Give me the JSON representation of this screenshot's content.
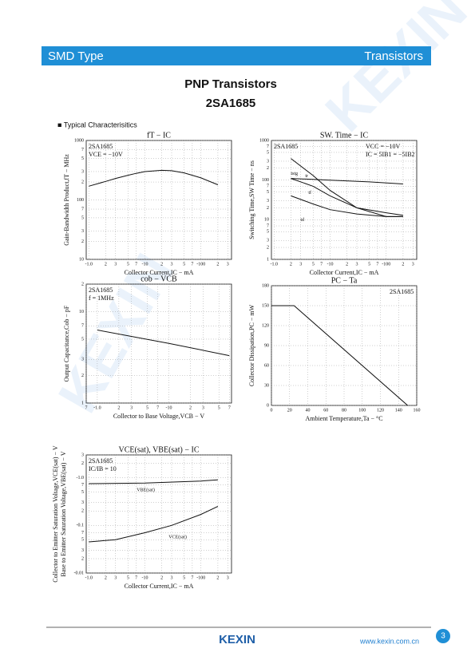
{
  "header": {
    "left": "SMD Type",
    "right": "Transistors"
  },
  "title": "PNP  Transistors",
  "part": "2SA1685",
  "section": "■ Typical  Characterisitics",
  "watermark": "KEXIN",
  "footer": {
    "logo": "KEXIN",
    "url": "www.kexin.com.cn",
    "page": "3"
  },
  "chart_data": [
    {
      "type": "line",
      "title": "fT  −  IC",
      "annotations": [
        "2SA1685",
        "VCE = −10V"
      ],
      "xlabel": "Collector Current,IC − mA",
      "ylabel": "Gain-Bandwidth Product,fT − MHz",
      "xscale": "log",
      "yscale": "log",
      "xlim": [
        -0.9,
        -350
      ],
      "ylim": [
        10,
        1000
      ],
      "grid": true,
      "xticks": [
        {
          "value": -1,
          "label": "-1.0"
        },
        {
          "value": -2,
          "label": "2"
        },
        {
          "value": -3,
          "label": "3"
        },
        {
          "value": -5,
          "label": "5"
        },
        {
          "value": -7,
          "label": "7"
        },
        -10,
        {
          "value": -20,
          "label": "2"
        },
        {
          "value": -30,
          "label": "3"
        },
        {
          "value": -50,
          "label": "5"
        },
        {
          "value": -70,
          "label": "7"
        },
        -100,
        {
          "value": -200,
          "label": "2"
        },
        {
          "value": -300,
          "label": "3"
        }
      ],
      "yticks": [
        10,
        {
          "value": 20,
          "label": "2"
        },
        {
          "value": 30,
          "label": "3"
        },
        {
          "value": 50,
          "label": "5"
        },
        {
          "value": 70,
          "label": "7"
        },
        100,
        {
          "value": 200,
          "label": "2"
        },
        {
          "value": 300,
          "label": "3"
        },
        {
          "value": 500,
          "label": "5"
        },
        {
          "value": 700,
          "label": "7"
        },
        1000
      ],
      "series": [
        {
          "color": "#111",
          "x": [
            -1,
            -2,
            -3,
            -5,
            -7,
            -10,
            -20,
            -30,
            -50,
            -70,
            -100,
            -200
          ],
          "values": [
            170,
            205,
            230,
            260,
            280,
            300,
            315,
            310,
            285,
            260,
            235,
            180
          ]
        }
      ]
    },
    {
      "type": "line",
      "title": "SW. Time  −  IC",
      "annotations": [
        "2SA1685",
        "VCC = −10V",
        "IC = 5IB1 = −5IB2"
      ],
      "xlabel": "Collector Current,IC − mA",
      "ylabel": "Switching Time,SW Time − ns",
      "xscale": "log",
      "yscale": "log",
      "xlim": [
        -0.9,
        -350
      ],
      "ylim": [
        1,
        1000
      ],
      "grid": true,
      "xticks": [
        {
          "value": -1,
          "label": "-1.0"
        },
        {
          "value": -2,
          "label": "2"
        },
        {
          "value": -3,
          "label": "3"
        },
        {
          "value": -5,
          "label": "5"
        },
        {
          "value": -7,
          "label": "7"
        },
        -10,
        {
          "value": -20,
          "label": "2"
        },
        {
          "value": -30,
          "label": "3"
        },
        {
          "value": -50,
          "label": "5"
        },
        {
          "value": -70,
          "label": "7"
        },
        -100,
        {
          "value": -200,
          "label": "2"
        },
        {
          "value": -300,
          "label": "3"
        }
      ],
      "yticks": [
        1,
        {
          "value": 2,
          "label": "2"
        },
        {
          "value": 3,
          "label": "3"
        },
        {
          "value": 5,
          "label": "5"
        },
        {
          "value": 7,
          "label": "7"
        },
        10,
        {
          "value": 20,
          "label": "2"
        },
        {
          "value": 30,
          "label": "3"
        },
        {
          "value": 50,
          "label": "5"
        },
        {
          "value": 70,
          "label": "7"
        },
        100,
        {
          "value": 200,
          "label": "2"
        },
        {
          "value": 300,
          "label": "3"
        },
        {
          "value": 500,
          "label": "5"
        },
        {
          "value": 700,
          "label": "7"
        },
        1000
      ],
      "series": [
        {
          "name": "tstg",
          "color": "#111",
          "x": [
            -2,
            -10,
            -50,
            -200
          ],
          "values": [
            110,
            100,
            90,
            80
          ]
        },
        {
          "name": "tr",
          "color": "#111",
          "x": [
            -2,
            -5,
            -10,
            -30,
            -100,
            -200
          ],
          "values": [
            350,
            130,
            55,
            20,
            12,
            12
          ]
        },
        {
          "name": "tf",
          "color": "#111",
          "x": [
            -2,
            -5,
            -10,
            -30,
            -100,
            -200
          ],
          "values": [
            110,
            70,
            40,
            20,
            15,
            13
          ]
        },
        {
          "name": "td",
          "color": "#111",
          "x": [
            -2,
            -5,
            -10,
            -30,
            -100,
            -200
          ],
          "values": [
            40,
            25,
            18,
            14,
            12,
            12
          ]
        }
      ]
    },
    {
      "type": "line",
      "title": "cob  −  VCB",
      "annotations": [
        "2SA1685",
        "f = 1MHz"
      ],
      "xlabel": "Collector to Base Voltage,VCB − V",
      "ylabel": "Output Capacitance,Cob − pF",
      "xscale": "log",
      "yscale": "log",
      "xlim": [
        -0.7,
        -75
      ],
      "ylim": [
        1,
        20
      ],
      "grid": true,
      "xticks": [
        {
          "value": -0.7,
          "label": "7"
        },
        {
          "value": -1,
          "label": "-1.0"
        },
        {
          "value": -2,
          "label": "2"
        },
        {
          "value": -3,
          "label": "3"
        },
        {
          "value": -5,
          "label": "5"
        },
        {
          "value": -7,
          "label": "7"
        },
        -10,
        {
          "value": -20,
          "label": "2"
        },
        {
          "value": -30,
          "label": "3"
        },
        {
          "value": -50,
          "label": "5"
        },
        {
          "value": -70,
          "label": "7"
        }
      ],
      "yticks": [
        1,
        {
          "value": 2,
          "label": "2"
        },
        {
          "value": 3,
          "label": "3"
        },
        {
          "value": 5,
          "label": "5"
        },
        {
          "value": 7,
          "label": "7"
        },
        10,
        {
          "value": 20,
          "label": "2"
        }
      ],
      "series": [
        {
          "color": "#111",
          "x": [
            -1,
            -10,
            -70
          ],
          "values": [
            6.3,
            4.5,
            3.3
          ]
        }
      ]
    },
    {
      "type": "line",
      "title": "PC  −  Ta",
      "annotations": [
        "2SA1685"
      ],
      "xlabel": "Ambient Temperature,Ta − °C",
      "ylabel": "Collector Dissipation,PC − mW",
      "xscale": "linear",
      "yscale": "linear",
      "xlim": [
        0,
        160
      ],
      "ylim": [
        0,
        180
      ],
      "grid": true,
      "xticks": [
        0,
        20,
        40,
        60,
        80,
        100,
        120,
        140,
        160
      ],
      "yticks": [
        0,
        30,
        60,
        90,
        120,
        150,
        180
      ],
      "series": [
        {
          "color": "#111",
          "x": [
            0,
            25,
            150
          ],
          "values": [
            150,
            150,
            0
          ]
        }
      ]
    },
    {
      "type": "line",
      "title": "VCE(sat), VBE(sat)  −  IC",
      "annotations": [
        "2SA1685",
        "IC/IB = 10"
      ],
      "xlabel": "Collector Current,IC − mA",
      "ylabel": "Collector to Emitter Saturation Voltage,VCE(sat) − V",
      "ylabel2": "Base to Emitter Saturation Voltage,VBE(sat) − V",
      "xscale": "log",
      "yscale": "log",
      "xlim": [
        -0.9,
        -350
      ],
      "ylim": [
        -0.01,
        -3
      ],
      "grid": true,
      "xticks": [
        {
          "value": -1,
          "label": "-1.0"
        },
        {
          "value": -2,
          "label": "2"
        },
        {
          "value": -3,
          "label": "3"
        },
        {
          "value": -5,
          "label": "5"
        },
        {
          "value": -7,
          "label": "7"
        },
        -10,
        {
          "value": -20,
          "label": "2"
        },
        {
          "value": -30,
          "label": "3"
        },
        {
          "value": -50,
          "label": "5"
        },
        {
          "value": -70,
          "label": "7"
        },
        -100,
        {
          "value": -200,
          "label": "2"
        },
        {
          "value": -300,
          "label": "3"
        }
      ],
      "yticks": [
        -0.01,
        {
          "value": -0.02,
          "label": "2"
        },
        {
          "value": -0.03,
          "label": "3"
        },
        {
          "value": -0.05,
          "label": "5"
        },
        {
          "value": -0.07,
          "label": "7"
        },
        -0.1,
        {
          "value": -0.2,
          "label": "2"
        },
        {
          "value": -0.3,
          "label": "3"
        },
        {
          "value": -0.5,
          "label": "5"
        },
        {
          "value": -0.7,
          "label": "7"
        },
        {
          "value": -1,
          "label": "-1.0"
        },
        {
          "value": -2,
          "label": "2"
        },
        {
          "value": -3,
          "label": "3"
        }
      ],
      "series": [
        {
          "name": "VBE(sat)",
          "color": "#111",
          "x": [
            -1,
            -10,
            -100,
            -200
          ],
          "values": [
            -0.75,
            -0.77,
            -0.85,
            -0.9
          ]
        },
        {
          "name": "VCE(sat)",
          "color": "#111",
          "x": [
            -1,
            -3,
            -10,
            -30,
            -100,
            -200
          ],
          "values": [
            -0.045,
            -0.05,
            -0.07,
            -0.1,
            -0.17,
            -0.25
          ]
        }
      ]
    }
  ]
}
